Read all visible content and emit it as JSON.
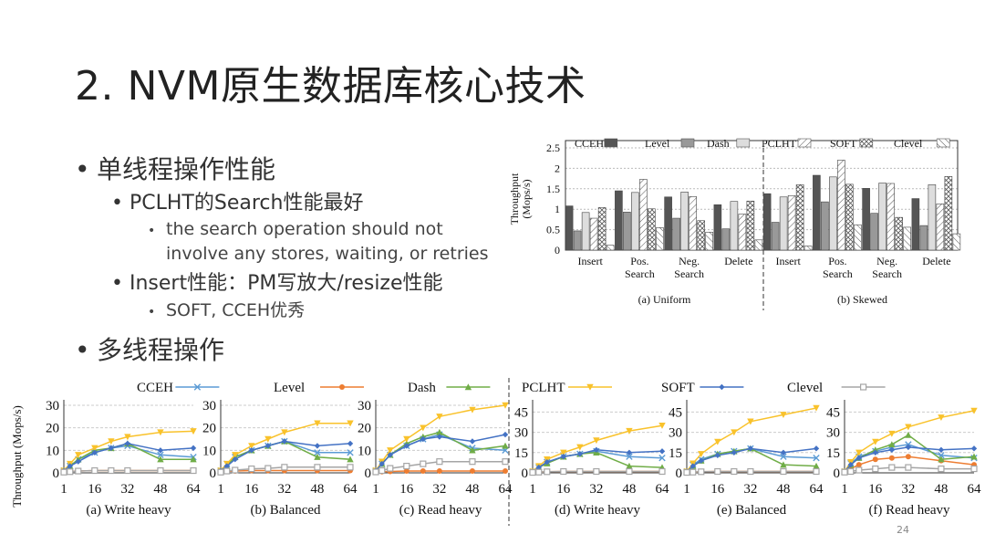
{
  "slide": {
    "title": "2. NVM原生数据库核心技术",
    "page_number": "24"
  },
  "bullets": {
    "b1": "单线程操作性能",
    "b1_1": "PCLHT的Search性能最好",
    "b1_1_1a": "the search operation should not",
    "b1_1_1b": "involve any stores, waiting, or retries",
    "b1_2": "Insert性能：PM写放大/resize性能",
    "b1_2_1": "SOFT, CCEH优秀",
    "b2": "多线程操作"
  },
  "icons": {
    "bullet": "•"
  },
  "colors": {
    "CCEH": "#5b9bd5",
    "Level": "#ed7d31",
    "Dash": "#70ad47",
    "PCLHT": "#f9c22b",
    "SOFT": "#4472c4",
    "Clevel": "#a5a5a5"
  },
  "chart_data": [
    {
      "type": "bar",
      "title": "(a) Uniform / (b) Skewed",
      "ylabel": "Throughput (Mops/s)",
      "ylim": [
        0,
        2.5
      ],
      "yticks": [
        "0",
        "0.5",
        "1",
        "1.5",
        "2",
        "2.5"
      ],
      "legend": [
        "CCEH",
        "Level",
        "Dash",
        "PCLHT",
        "SOFT",
        "Clevel"
      ],
      "groups": [
        {
          "panel": "(a) Uniform",
          "categories": [
            "Insert",
            "Pos.|Search",
            "Neg.|Search",
            "Delete"
          ],
          "values": [
            [
              1.08,
              0.47,
              0.92,
              0.78,
              1.04,
              0.12
            ],
            [
              1.45,
              0.93,
              1.41,
              1.73,
              1.01,
              0.55
            ],
            [
              1.3,
              0.78,
              1.42,
              1.31,
              0.72,
              0.44
            ],
            [
              1.11,
              0.52,
              1.19,
              0.88,
              1.2,
              0.25
            ]
          ]
        },
        {
          "panel": "(b) Skewed",
          "categories": [
            "Insert",
            "Pos.|Search",
            "Neg.|Search",
            "Delete"
          ],
          "values": [
            [
              1.38,
              0.68,
              1.3,
              1.33,
              1.6,
              0.1
            ],
            [
              1.83,
              1.18,
              1.79,
              2.2,
              1.61,
              0.62
            ],
            [
              1.51,
              0.9,
              1.64,
              1.63,
              0.8,
              0.56
            ],
            [
              1.26,
              0.6,
              1.6,
              1.13,
              1.8,
              0.4
            ]
          ]
        }
      ]
    },
    {
      "type": "line",
      "ylabel": "Throughput (Mops/s)",
      "x": [
        1,
        4,
        8,
        16,
        24,
        32,
        48,
        64
      ],
      "xticks": [
        "1",
        "16",
        "32",
        "48",
        "64"
      ],
      "series_names": [
        "CCEH",
        "Level",
        "Dash",
        "PCLHT",
        "SOFT",
        "Clevel"
      ],
      "panels": [
        {
          "title": "(a) Write heavy",
          "ylim": [
            0,
            30
          ],
          "yticks": [
            "0",
            "10",
            "20",
            "30"
          ],
          "series": {
            "CCEH": [
              1,
              3,
              6,
              9,
              11,
              12,
              8,
              7
            ],
            "Level": [
              0.3,
              0.6,
              0.8,
              1,
              1,
              1,
              1,
              1
            ],
            "Dash": [
              1,
              3,
              6,
              10,
              11,
              13,
              6,
              6
            ],
            "PCLHT": [
              1,
              4,
              8,
              11,
              14,
              16,
              18,
              18.5
            ],
            "SOFT": [
              1,
              3,
              5,
              9,
              11,
              13,
              10,
              11
            ],
            "Clevel": [
              0.3,
              0.5,
              0.8,
              1,
              1,
              1,
              1,
              1
            ]
          }
        },
        {
          "title": "(b) Balanced",
          "ylim": [
            0,
            30
          ],
          "yticks": [
            "0",
            "10",
            "20",
            "30"
          ],
          "series": {
            "CCEH": [
              1,
              4,
              7,
              10,
              12,
              14,
              9,
              9
            ],
            "Level": [
              0.3,
              0.6,
              0.8,
              1,
              1,
              1,
              1,
              1
            ],
            "Dash": [
              1,
              3,
              7,
              10,
              12,
              14,
              7,
              6
            ],
            "PCLHT": [
              1,
              4,
              8,
              12,
              15,
              18,
              22,
              22
            ],
            "SOFT": [
              1,
              3,
              6,
              10,
              12,
              14,
              12,
              13
            ],
            "Clevel": [
              0.3,
              0.8,
              1.2,
              1.8,
              2,
              2.5,
              2.5,
              2.5
            ]
          }
        },
        {
          "title": "(c) Read heavy",
          "ylim": [
            0,
            30
          ],
          "yticks": [
            "0",
            "10",
            "20",
            "30"
          ],
          "series": {
            "CCEH": [
              1,
              4,
              8,
              12,
              15,
              17,
              11,
              10
            ],
            "Level": [
              0.3,
              0.5,
              0.6,
              0.8,
              0.8,
              0.8,
              0.8,
              0.8
            ],
            "Dash": [
              1,
              4,
              8,
              13,
              16,
              18,
              10,
              12
            ],
            "PCLHT": [
              1,
              5,
              10,
              15,
              20,
              25,
              28,
              30
            ],
            "SOFT": [
              1,
              4,
              8,
              12,
              15,
              16,
              14,
              17
            ],
            "Clevel": [
              0.4,
              1,
              2,
              3,
              4,
              5,
              5,
              5
            ]
          }
        },
        {
          "title": "(d) Write heavy",
          "ylim": [
            0,
            50
          ],
          "yticks": [
            "0",
            "15",
            "30",
            "45"
          ],
          "series": {
            "CCEH": [
              1,
              4,
              8,
              12,
              14,
              16,
              12,
              11
            ],
            "Level": [
              0.3,
              0.5,
              0.8,
              1,
              1,
              1,
              1,
              1
            ],
            "Dash": [
              1,
              4,
              7,
              12,
              14,
              15,
              5,
              4
            ],
            "PCLHT": [
              1,
              5,
              10,
              15,
              19,
              24,
              31,
              35
            ],
            "SOFT": [
              1,
              4,
              8,
              12,
              14,
              17,
              15,
              16
            ],
            "Clevel": [
              0.3,
              0.5,
              0.8,
              1,
              1,
              1,
              1,
              1
            ]
          }
        },
        {
          "title": "(e) Balanced",
          "ylim": [
            0,
            50
          ],
          "yticks": [
            "0",
            "15",
            "30",
            "45"
          ],
          "series": {
            "CCEH": [
              1,
              6,
              10,
              14,
              16,
              18,
              12,
              11
            ],
            "Level": [
              0.3,
              0.5,
              0.8,
              1,
              1,
              1,
              1,
              1
            ],
            "Dash": [
              1,
              5,
              9,
              14,
              16,
              18,
              6,
              5
            ],
            "PCLHT": [
              1,
              7,
              14,
              23,
              30,
              38,
              43,
              48
            ],
            "SOFT": [
              1,
              5,
              9,
              13,
              15,
              18,
              15,
              18
            ],
            "Clevel": [
              0.3,
              0.5,
              0.8,
              1,
              1,
              1,
              1,
              1
            ]
          }
        },
        {
          "title": "(f) Read heavy",
          "ylim": [
            0,
            50
          ],
          "yticks": [
            "0",
            "15",
            "30",
            "45"
          ],
          "series": {
            "CCEH": [
              1,
              7,
              12,
              16,
              19,
              21,
              13,
              11
            ],
            "Level": [
              0.5,
              3,
              6,
              10,
              11,
              12,
              9,
              6
            ],
            "Dash": [
              1,
              6,
              11,
              17,
              21,
              28,
              10,
              12
            ],
            "PCLHT": [
              1,
              8,
              15,
              23,
              29,
              34,
              41,
              46
            ],
            "SOFT": [
              1,
              6,
              11,
              15,
              17,
              19,
              17,
              18
            ],
            "Clevel": [
              0.5,
              1,
              2,
              3,
              4,
              4,
              3,
              3
            ]
          }
        }
      ]
    }
  ]
}
